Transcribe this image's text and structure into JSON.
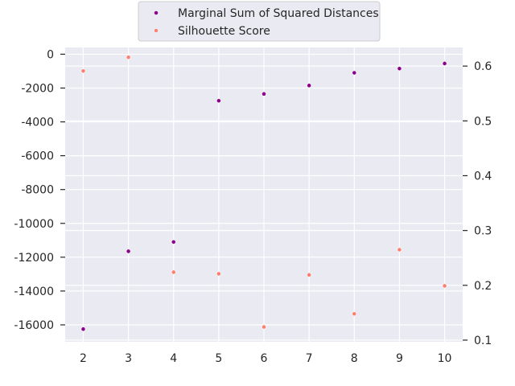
{
  "chart_data": {
    "type": "scatter",
    "x": [
      2,
      3,
      4,
      5,
      6,
      7,
      8,
      9,
      10
    ],
    "series": [
      {
        "name": "Marginal Sum of Squared Distances",
        "axis": "left",
        "color": "#8b008b",
        "values": [
          -16250,
          -11650,
          -11100,
          -2750,
          -2350,
          -1850,
          -1100,
          -850,
          -550
        ]
      },
      {
        "name": "Silhouette Score",
        "axis": "right",
        "color": "#fa8072",
        "values": [
          0.591,
          0.616,
          0.224,
          0.221,
          0.124,
          0.219,
          0.148,
          0.265,
          0.199
        ]
      }
    ],
    "xlim": [
      1.6,
      10.4
    ],
    "ylim_left": [
      -17000,
      400
    ],
    "ylim_right": [
      0.097,
      0.634
    ],
    "x_ticks": [
      2,
      3,
      4,
      5,
      6,
      7,
      8,
      9,
      10
    ],
    "y_ticks_left": [
      0,
      -2000,
      -4000,
      -6000,
      -8000,
      -10000,
      -12000,
      -14000,
      -16000
    ],
    "y_ticks_left_labels": [
      "0",
      "-2000",
      "-4000",
      "-6000",
      "-8000",
      "-10000",
      "-12000",
      "-14000",
      "-16000"
    ],
    "y_ticks_right": [
      0.6,
      0.5,
      0.4,
      0.3,
      0.2,
      0.1
    ],
    "y_ticks_right_labels": [
      "0.6",
      "0.5",
      "0.4",
      "0.3",
      "0.2",
      "0.1"
    ],
    "grid": true,
    "legend_placement": "top-center",
    "plot_background": "#eaeaf2",
    "title": "",
    "xlabel": "",
    "ylabel": ""
  }
}
